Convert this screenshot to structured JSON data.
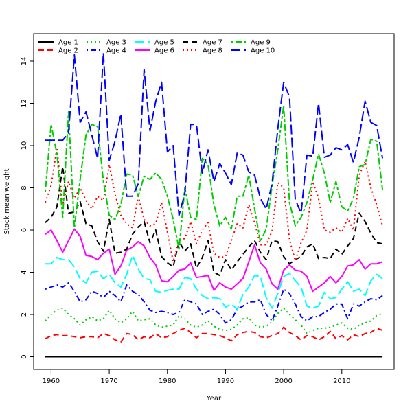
{
  "chart_data": {
    "type": "line",
    "title": "",
    "xlabel": "Year",
    "ylabel": "Stock mean weight",
    "xlim": [
      1957,
      2019
    ],
    "ylim": [
      -0.6,
      15.3
    ],
    "xticks": [
      1960,
      1970,
      1980,
      1990,
      2000,
      2010
    ],
    "yticks": [
      0,
      2,
      4,
      6,
      8,
      10,
      12,
      14
    ],
    "legend_position": "top-left",
    "x": [
      1959,
      1960,
      1961,
      1962,
      1963,
      1964,
      1965,
      1966,
      1967,
      1968,
      1969,
      1970,
      1971,
      1972,
      1973,
      1974,
      1975,
      1976,
      1977,
      1978,
      1979,
      1980,
      1981,
      1982,
      1983,
      1984,
      1985,
      1986,
      1987,
      1988,
      1989,
      1990,
      1991,
      1992,
      1993,
      1994,
      1995,
      1996,
      1997,
      1998,
      1999,
      2000,
      2001,
      2002,
      2003,
      2004,
      2005,
      2006,
      2007,
      2008,
      2009,
      2010,
      2011,
      2012,
      2013,
      2014,
      2015,
      2016,
      2017
    ],
    "series": [
      {
        "name": "Age 1",
        "color": "#000000",
        "dash": "solid",
        "values": [
          0,
          0,
          0,
          0,
          0,
          0,
          0,
          0,
          0,
          0,
          0,
          0,
          0,
          0,
          0,
          0,
          0,
          0,
          0,
          0,
          0,
          0,
          0,
          0,
          0,
          0,
          0,
          0,
          0,
          0,
          0,
          0,
          0,
          0,
          0,
          0,
          0,
          0,
          0,
          0,
          0,
          0,
          0,
          0,
          0,
          0,
          0,
          0,
          0,
          0,
          0,
          0,
          0,
          0,
          0,
          0,
          0,
          0,
          0
        ]
      },
      {
        "name": "Age 2",
        "color": "#ff0000",
        "dash": "dashed",
        "values": [
          0.85,
          1.0,
          1.05,
          1.0,
          1.0,
          0.95,
          0.9,
          0.95,
          0.95,
          0.9,
          1.1,
          1.0,
          0.8,
          0.7,
          1.1,
          1.05,
          0.8,
          0.95,
          0.9,
          1.1,
          0.9,
          0.95,
          1.1,
          1.25,
          1.35,
          1.15,
          0.9,
          1.1,
          1.1,
          1.05,
          1.0,
          0.9,
          0.75,
          1.05,
          1.15,
          1.2,
          1.15,
          0.95,
          0.9,
          1.0,
          1.1,
          1.4,
          1.15,
          1.0,
          0.8,
          1.0,
          0.95,
          0.8,
          0.95,
          1.2,
          0.85,
          1.0,
          0.8,
          1.05,
          0.95,
          1.1,
          1.15,
          1.35,
          1.25
        ]
      },
      {
        "name": "Age 3",
        "color": "#00cd00",
        "dash": "dotted",
        "values": [
          1.7,
          2.0,
          2.2,
          2.3,
          2.0,
          1.8,
          1.5,
          1.75,
          1.9,
          1.7,
          1.8,
          2.2,
          1.8,
          1.6,
          1.8,
          2.15,
          1.7,
          1.75,
          1.8,
          1.5,
          1.4,
          1.45,
          1.5,
          1.95,
          1.8,
          1.5,
          1.4,
          1.5,
          1.7,
          1.45,
          1.3,
          1.25,
          1.3,
          1.5,
          1.8,
          1.85,
          1.5,
          1.4,
          1.45,
          1.65,
          2.05,
          2.3,
          2.0,
          1.75,
          1.5,
          1.1,
          1.25,
          1.35,
          1.35,
          1.4,
          1.5,
          1.6,
          1.35,
          1.3,
          1.5,
          1.6,
          1.7,
          1.95,
          2.05
        ]
      },
      {
        "name": "Age 4",
        "color": "#0000ff",
        "dash": "dashdot",
        "values": [
          3.2,
          3.3,
          3.4,
          3.3,
          3.5,
          3.1,
          2.6,
          2.7,
          3.1,
          3.0,
          2.8,
          3.1,
          2.9,
          2.6,
          3.4,
          3.1,
          2.95,
          2.6,
          2.2,
          2.1,
          2.15,
          2.1,
          2.0,
          2.1,
          2.7,
          2.6,
          2.5,
          2.0,
          2.15,
          2.25,
          2.0,
          1.6,
          1.75,
          2.25,
          2.4,
          2.6,
          2.6,
          2.7,
          2.0,
          1.7,
          2.4,
          3.2,
          3.0,
          2.5,
          1.9,
          1.7,
          1.9,
          1.9,
          2.1,
          2.25,
          2.5,
          2.5,
          1.8,
          2.5,
          2.4,
          2.6,
          2.75,
          2.7,
          2.9
        ]
      },
      {
        "name": "Age 5",
        "color": "#00ffff",
        "dash": "longdash",
        "values": [
          4.4,
          4.4,
          4.7,
          4.6,
          4.6,
          4.25,
          3.7,
          3.5,
          4.0,
          4.05,
          3.7,
          3.9,
          3.5,
          3.3,
          3.9,
          4.8,
          4.15,
          3.7,
          3.65,
          3.1,
          3.05,
          3.15,
          3.2,
          3.2,
          3.75,
          3.7,
          3.2,
          2.9,
          2.75,
          2.8,
          2.75,
          2.35,
          2.5,
          2.25,
          2.95,
          3.3,
          3.85,
          3.8,
          2.8,
          2.3,
          3.0,
          3.8,
          3.95,
          3.6,
          3.3,
          2.4,
          2.3,
          2.4,
          3.05,
          2.75,
          2.8,
          3.2,
          3.55,
          3.1,
          3.2,
          2.9,
          3.6,
          3.9,
          3.7
        ]
      },
      {
        "name": "Age 6",
        "color": "#ff00ff",
        "dash": "solid",
        "values": [
          5.8,
          6.0,
          5.5,
          4.95,
          5.5,
          6.05,
          5.7,
          4.8,
          4.75,
          4.6,
          4.9,
          5.1,
          3.9,
          4.3,
          5.05,
          5.2,
          5.45,
          5.25,
          4.7,
          4.35,
          3.6,
          3.55,
          3.8,
          4.1,
          4.15,
          4.45,
          3.75,
          3.8,
          3.85,
          3.15,
          3.5,
          3.3,
          3.2,
          3.45,
          3.7,
          4.5,
          5.3,
          4.45,
          4.15,
          3.45,
          3.2,
          4.1,
          4.35,
          4.1,
          4.05,
          3.8,
          3.1,
          3.3,
          3.5,
          3.8,
          3.5,
          3.8,
          4.3,
          4.35,
          4.6,
          4.15,
          4.4,
          4.4,
          4.5
        ]
      },
      {
        "name": "Age 7",
        "color": "#000000",
        "dash": "dashed",
        "values": [
          6.35,
          6.6,
          7.1,
          9.0,
          6.8,
          6.85,
          7.35,
          6.3,
          6.2,
          5.45,
          5.0,
          6.5,
          4.9,
          4.95,
          5.1,
          5.8,
          6.15,
          6.4,
          5.4,
          6.0,
          4.75,
          4.45,
          4.25,
          5.45,
          5.0,
          5.35,
          4.2,
          4.7,
          5.5,
          4.0,
          3.85,
          4.6,
          4.1,
          4.5,
          4.85,
          5.2,
          5.5,
          4.95,
          4.6,
          5.5,
          5.45,
          4.75,
          4.4,
          4.6,
          4.75,
          5.2,
          5.35,
          4.65,
          4.7,
          4.65,
          5.1,
          4.85,
          5.25,
          5.6,
          6.8,
          6.4,
          5.85,
          5.4,
          5.35
        ]
      },
      {
        "name": "Age 8",
        "color": "#ff0000",
        "dash": "dotted",
        "values": [
          7.3,
          8.1,
          9.9,
          7.2,
          8.3,
          7.5,
          8.0,
          7.4,
          7.0,
          7.6,
          7.4,
          9.1,
          7.7,
          6.7,
          6.3,
          6.1,
          7.6,
          6.5,
          6.2,
          6.3,
          7.3,
          5.9,
          4.5,
          5.5,
          5.6,
          6.4,
          5.35,
          6.0,
          6.35,
          4.9,
          4.7,
          4.75,
          5.5,
          6.3,
          6.1,
          7.2,
          6.35,
          5.3,
          5.3,
          5.95,
          8.25,
          8.0,
          5.55,
          4.55,
          5.4,
          6.0,
          8.3,
          7.5,
          6.0,
          5.9,
          6.1,
          5.9,
          6.55,
          6.0,
          8.6,
          9.25,
          8.0,
          7.2,
          6.2
        ]
      },
      {
        "name": "Age 9",
        "color": "#00cd00",
        "dash": "twodash",
        "values": [
          7.8,
          11.0,
          9.6,
          6.6,
          11.6,
          6.1,
          8.4,
          10.5,
          11.0,
          10.9,
          8.3,
          6.7,
          6.5,
          7.2,
          8.65,
          8.6,
          7.6,
          8.55,
          8.4,
          8.7,
          8.4,
          7.6,
          6.5,
          5.1,
          8.0,
          6.6,
          6.5,
          9.4,
          9.1,
          7.2,
          6.2,
          6.6,
          6.05,
          7.6,
          7.6,
          8.6,
          7.0,
          5.45,
          6.05,
          8.1,
          9.8,
          11.9,
          7.3,
          6.2,
          6.6,
          7.3,
          8.4,
          9.6,
          8.7,
          7.3,
          8.3,
          7.1,
          6.9,
          7.5,
          9.0,
          9.1,
          10.3,
          10.2,
          7.9
        ]
      },
      {
        "name": "Age 10",
        "color": "#0000ff",
        "dash": "longdash",
        "values": [
          10.25,
          10.25,
          10.25,
          10.25,
          10.6,
          14.3,
          11.1,
          11.6,
          10.5,
          9.4,
          14.4,
          9.3,
          10.2,
          11.5,
          7.6,
          7.6,
          8.2,
          13.6,
          10.7,
          12.1,
          13.0,
          9.7,
          10.0,
          6.7,
          7.75,
          11.0,
          11.0,
          8.7,
          9.8,
          8.3,
          9.15,
          8.7,
          8.15,
          9.65,
          9.55,
          8.75,
          8.6,
          7.5,
          7.0,
          8.2,
          10.8,
          13.0,
          12.3,
          7.45,
          6.8,
          9.55,
          9.5,
          12.0,
          9.45,
          9.55,
          9.9,
          9.8,
          10.05,
          9.2,
          10.4,
          12.1,
          11.1,
          10.95,
          9.4
        ]
      }
    ]
  }
}
